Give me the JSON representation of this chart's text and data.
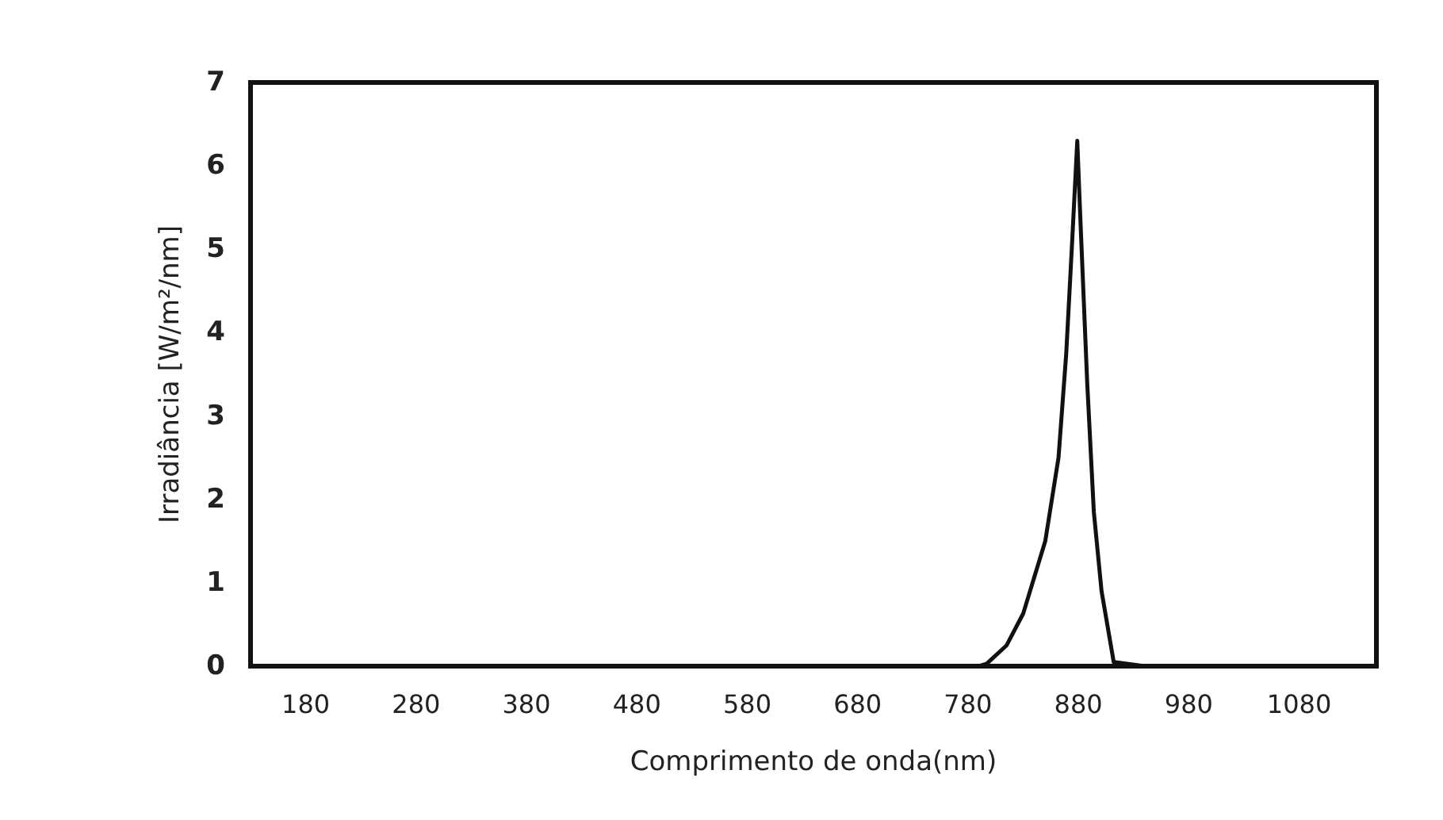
{
  "chart_data": {
    "type": "line",
    "xlabel": "Comprimento de onda(nm)",
    "ylabel": "Irradiância [W/m²/nm]",
    "xlim": [
      130,
      1150
    ],
    "xticks": [
      180,
      280,
      380,
      480,
      580,
      680,
      780,
      880,
      980,
      1080
    ],
    "ylim": [
      0,
      7
    ],
    "yticks": [
      0,
      1,
      2,
      3,
      4,
      5,
      6,
      7
    ],
    "grid": false,
    "marker": "none",
    "line_style": "solid",
    "series": [
      {
        "color": "#111111",
        "x": [
          130,
          790,
          797,
          815,
          830,
          850,
          862,
          869,
          874,
          879,
          882,
          888,
          894,
          901,
          912,
          940,
          1150
        ],
        "values": [
          0,
          0,
          0.03,
          0.25,
          0.63,
          1.5,
          2.5,
          3.75,
          5.0,
          6.3,
          5.3,
          3.4,
          1.85,
          0.9,
          0.05,
          0,
          0
        ]
      }
    ]
  }
}
